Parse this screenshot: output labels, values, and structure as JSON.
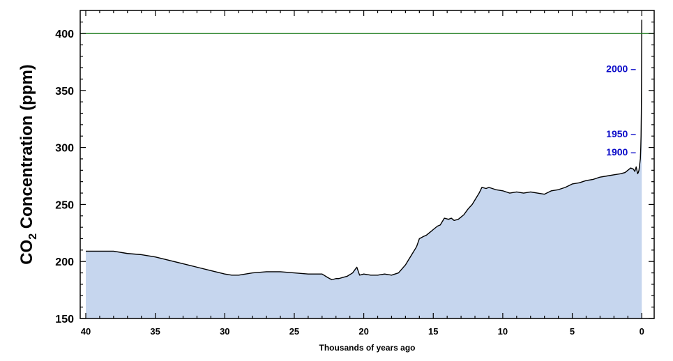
{
  "chart_data": {
    "type": "area",
    "title": "",
    "xlabel": "Thousands of years ago",
    "ylabel_main": "CO",
    "ylabel_sub": "2",
    "ylabel_rest": " Concentration (ppm)",
    "xlim": [
      40.5,
      -0.9
    ],
    "ylim": [
      150,
      420
    ],
    "x_reversed": true,
    "xticks": [
      40,
      35,
      30,
      25,
      20,
      15,
      10,
      5,
      0
    ],
    "yticks": [
      150,
      200,
      250,
      300,
      350,
      400
    ],
    "grid": false,
    "reference_line": {
      "y": 400,
      "color": "#1a7a1a"
    },
    "colors": {
      "fill": "#c6d6ee",
      "line": "#000000",
      "annotation": "#0a0ac8"
    },
    "series": [
      {
        "x": [
          40,
          39,
          38,
          37,
          36,
          35,
          34,
          33,
          32,
          31,
          30,
          29.5,
          29,
          28.5,
          28,
          27,
          26,
          25,
          24,
          23,
          22.6,
          22.3,
          22,
          21.8,
          21.5,
          21.2,
          20.8,
          20.5,
          20.3,
          20,
          19.5,
          19,
          18.5,
          18,
          17.5,
          17,
          16.5,
          16.2,
          16,
          15.7,
          15.5,
          15.2,
          15,
          14.7,
          14.5,
          14.2,
          13.9,
          13.7,
          13.5,
          13.2,
          13,
          12.8,
          12.5,
          12.2,
          12,
          11.7,
          11.5,
          11.2,
          11,
          10.5,
          10,
          9.5,
          9,
          8.5,
          8,
          7.5,
          7,
          6.5,
          6,
          5.5,
          5,
          4.5,
          4,
          3.5,
          3,
          2.5,
          2,
          1.5,
          1.2,
          1,
          0.8,
          0.6,
          0.5,
          0.4,
          0.3,
          0.25,
          0.2,
          0.15,
          0.1,
          0.07,
          0.05,
          0.03,
          0.02,
          0.0
        ],
        "y": [
          209,
          209,
          209,
          207,
          206,
          204,
          201,
          198,
          195,
          192,
          189,
          188,
          188,
          189,
          190,
          191,
          191,
          190,
          189,
          189,
          186,
          184,
          185,
          185,
          186,
          187,
          190,
          195,
          188,
          189,
          188,
          188,
          189,
          188,
          190,
          197,
          207,
          213,
          220,
          222,
          223,
          226,
          228,
          231,
          232,
          238,
          237,
          238,
          236,
          237,
          239,
          241,
          246,
          250,
          254,
          260,
          265,
          264,
          265,
          263,
          262,
          260,
          261,
          260,
          261,
          260,
          259,
          262,
          263,
          265,
          268,
          269,
          271,
          272,
          274,
          275,
          276,
          277,
          278,
          280,
          282,
          281,
          279,
          283,
          277,
          278,
          280,
          285,
          290,
          300,
          310,
          330,
          350,
          412
        ]
      }
    ],
    "annotations": [
      {
        "label": "2000 –",
        "y": 369
      },
      {
        "label": "1950 –",
        "y": 312
      },
      {
        "label": "1900 –",
        "y": 296
      }
    ]
  }
}
